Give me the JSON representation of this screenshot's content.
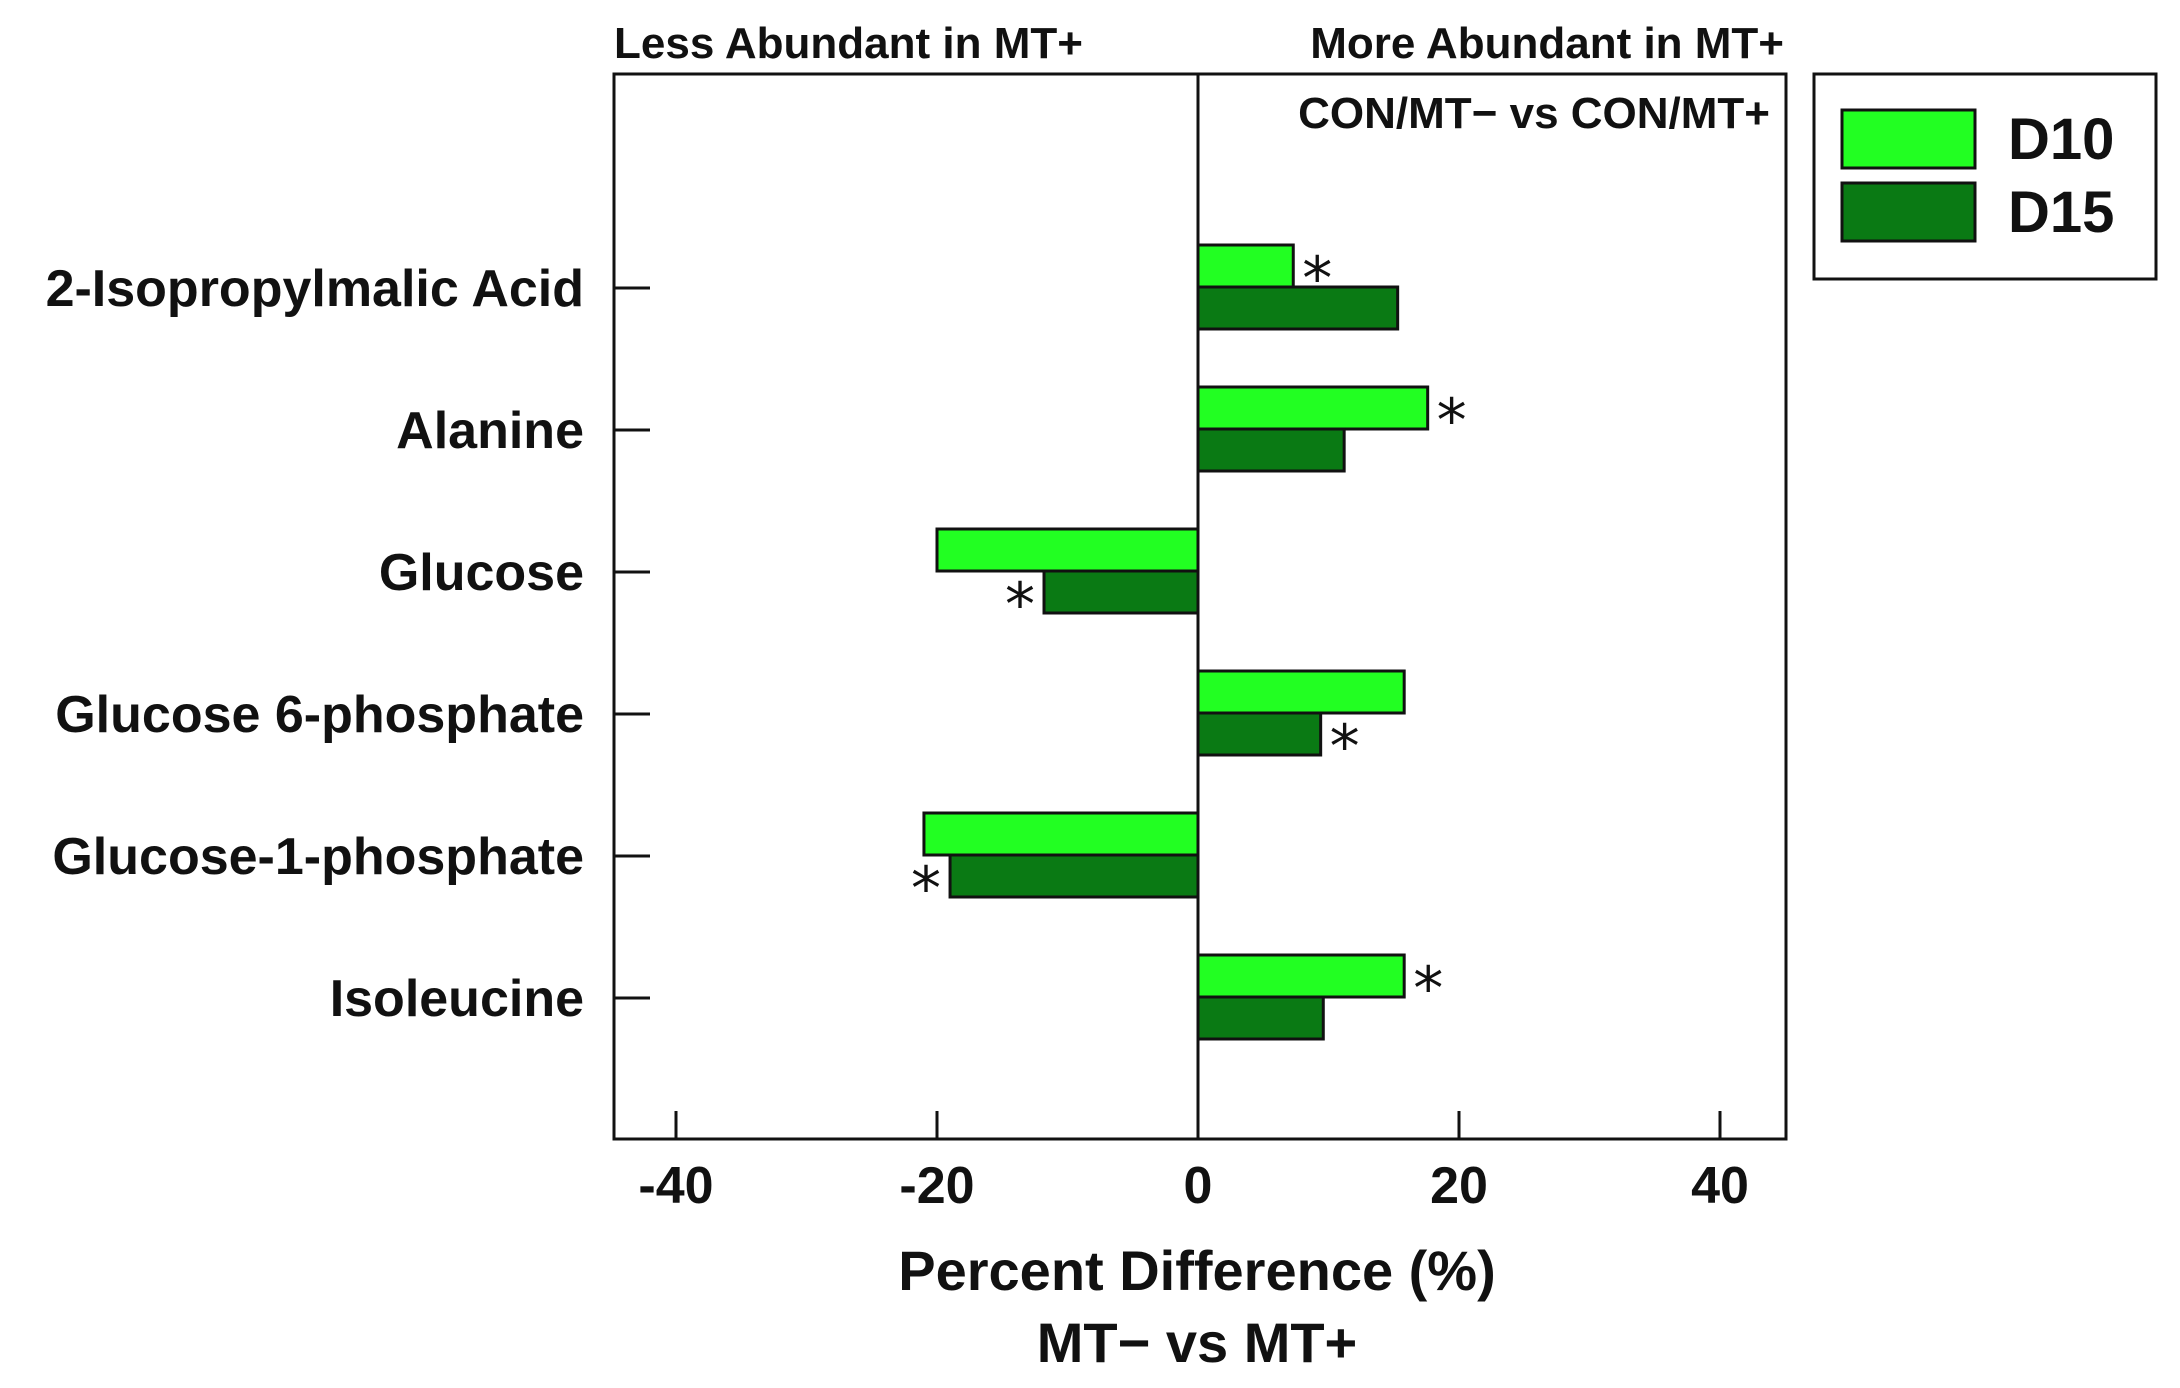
{
  "chart_data": {
    "type": "bar",
    "orientation": "horizontal",
    "header_left": "Less Abundant in MT+",
    "header_right": "More Abundant in MT+",
    "comparison": "CON/MT− vs CON/MT+",
    "categories": [
      "2-Isopropylmalic Acid",
      "Alanine",
      "Glucose",
      "Glucose 6-phosphate",
      "Glucose-1-phosphate",
      "Isoleucine"
    ],
    "series": [
      {
        "name": "D10",
        "color": "#22FF22",
        "values": [
          7.3,
          17.6,
          -20,
          15.8,
          -21,
          15.8
        ],
        "significant": [
          true,
          true,
          false,
          false,
          false,
          true
        ]
      },
      {
        "name": "D15",
        "color": "#0A7A14",
        "values": [
          15.3,
          11.2,
          -11.8,
          9.4,
          -19,
          9.6
        ],
        "significant": [
          false,
          false,
          true,
          true,
          true,
          false
        ]
      }
    ],
    "significance_marker": "*",
    "xlabel_line1": "Percent Difference (%)",
    "xlabel_line2": "MT− vs MT+",
    "xlim": [
      -45,
      45
    ],
    "xticks": [
      -40,
      -20,
      0,
      20,
      40
    ],
    "xtick_labels": [
      "-40",
      "-20",
      "0",
      "20",
      "40"
    ],
    "legend_position": "top-right outside plot"
  }
}
